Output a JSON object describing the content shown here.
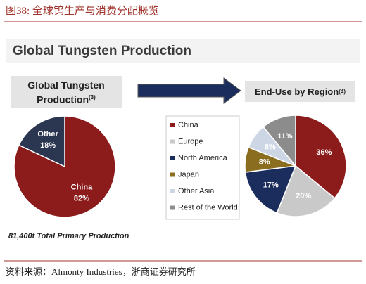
{
  "figure_title": "图38:  全球钨生产与消费分配概览",
  "banner_title": "Global Tungsten Production",
  "source": "资料来源：Almonty Industries，浙商证券研究所",
  "chart_data": [
    {
      "type": "pie",
      "title": "Global Tungsten Production",
      "title_note": "(3)",
      "categories": [
        "China",
        "Other"
      ],
      "values": [
        82,
        18
      ],
      "value_labels": [
        "82%",
        "18%"
      ],
      "colors": [
        "#8c1c1c",
        "#2b3650"
      ],
      "legend": false,
      "footnote": "81,400t Total Primary Production"
    },
    {
      "type": "pie",
      "title": "End-Use by Region",
      "title_note": "(4)",
      "categories": [
        "China",
        "Europe",
        "North America",
        "Japan",
        "Other Asia",
        "Rest of the World"
      ],
      "values": [
        36,
        20,
        17,
        8,
        8,
        11
      ],
      "value_labels": [
        "36%",
        "20%",
        "17%",
        "8%",
        "8%",
        "11%"
      ],
      "colors": [
        "#8c1c1c",
        "#c9c9c9",
        "#1b2d5c",
        "#8a6d1e",
        "#cdd6e4",
        "#8c8c8c"
      ],
      "legend": true
    }
  ]
}
